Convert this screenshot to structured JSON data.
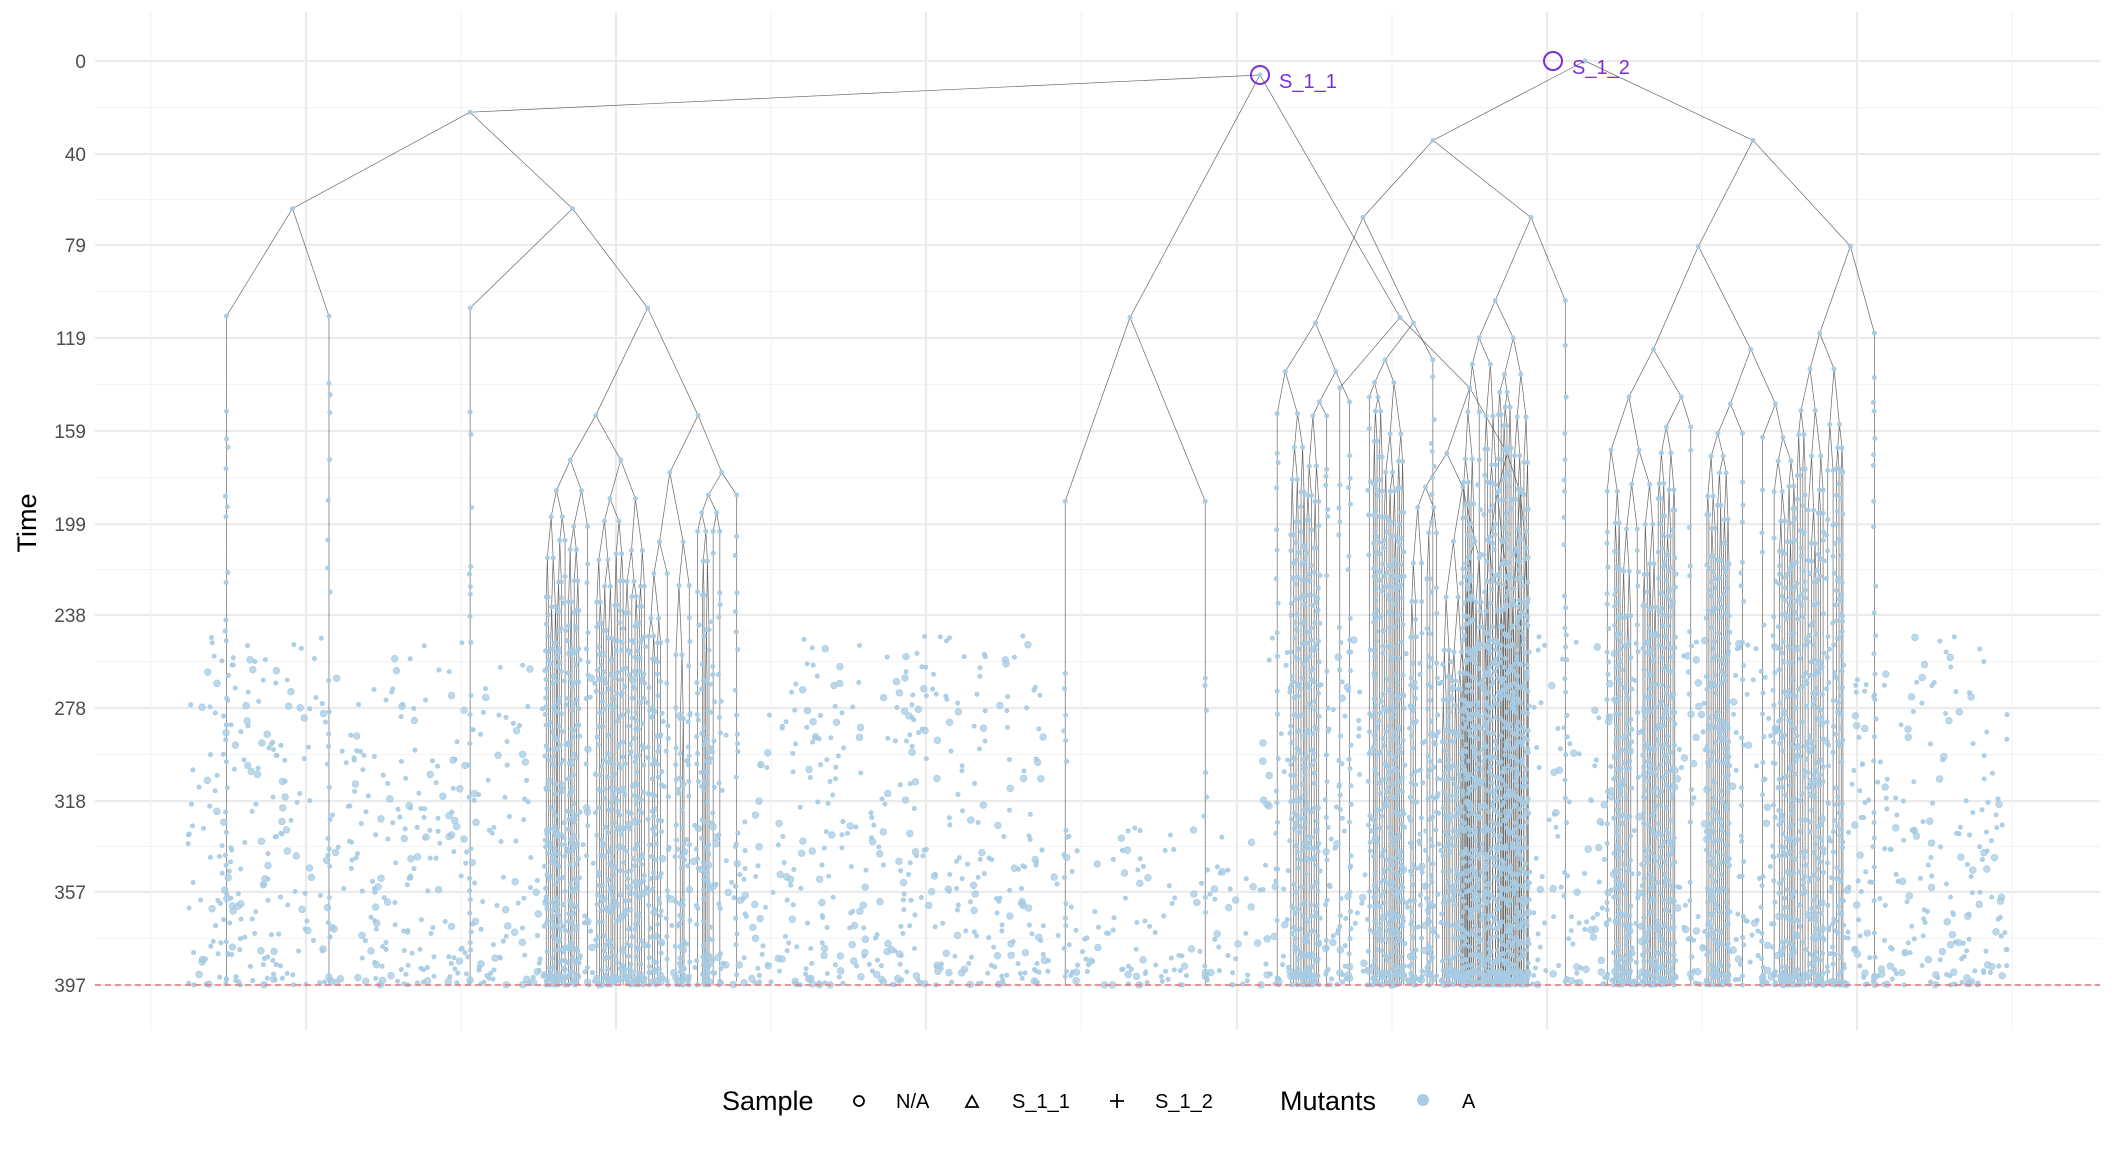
{
  "chart_data": {
    "type": "scatter",
    "subtype": "phylogenetic-tree",
    "title": "",
    "xlabel": "",
    "ylabel": "Time",
    "y_reversed": true,
    "ylim": [
      0,
      397
    ],
    "y_ticks": [
      0,
      40,
      79,
      119,
      159,
      199,
      238,
      278,
      318,
      357,
      397
    ],
    "grid": true,
    "reference_line": {
      "y": 397,
      "style": "dashed",
      "color": "#e07a7a"
    },
    "sampling_events": [
      {
        "label": "S_1_1",
        "time": 6,
        "color": "#7b2fd6"
      },
      {
        "label": "S_1_2",
        "time": 0,
        "color": "#7b2fd6"
      }
    ],
    "node_color": "#a6cbe3",
    "edge_color": "#4d4d4d",
    "legend": {
      "placement": "bottom",
      "sample_title": "Sample",
      "sample_items": [
        {
          "label": "N/A",
          "shape": "circle"
        },
        {
          "label": "S_1_1",
          "shape": "triangle"
        },
        {
          "label": "S_1_2",
          "shape": "plus"
        }
      ],
      "mutants_title": "Mutants",
      "mutants_items": [
        {
          "label": "A",
          "shape": "filled-circle",
          "color": "#a6cbe3"
        }
      ]
    }
  }
}
